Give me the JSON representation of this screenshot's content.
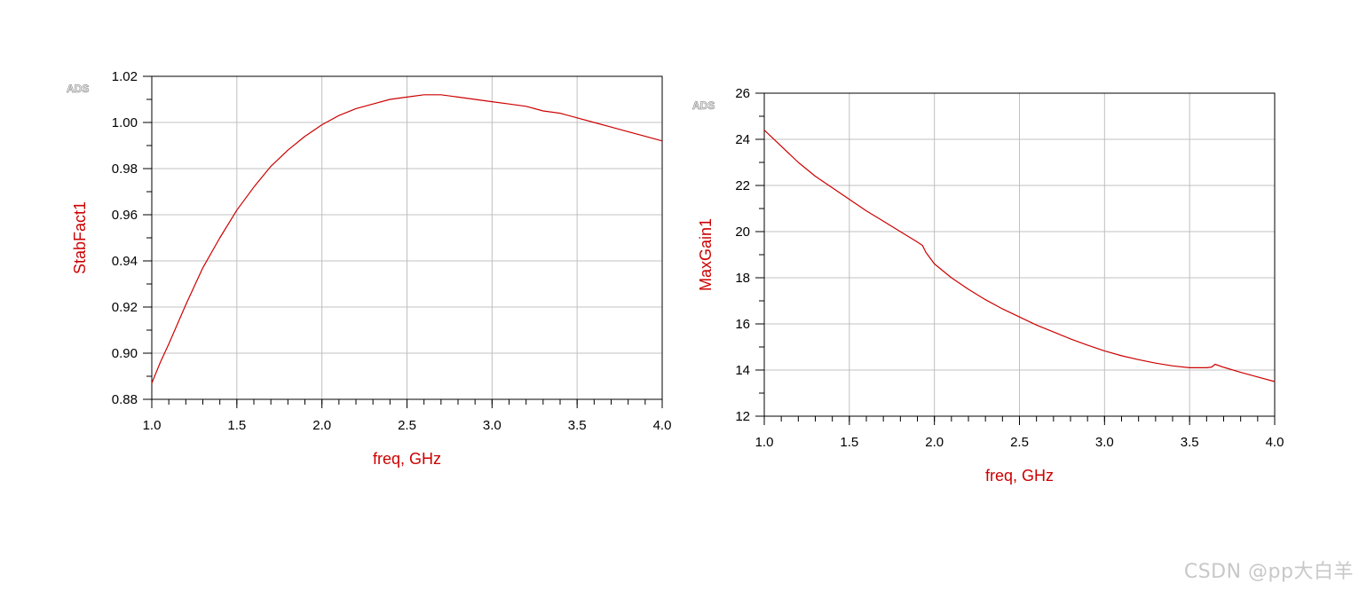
{
  "chart_data": [
    {
      "type": "line",
      "stamp": "ADS",
      "xlabel": "freq, GHz",
      "ylabel": "StabFact1",
      "xlim": [
        1.0,
        4.0
      ],
      "ylim": [
        0.88,
        1.02
      ],
      "x_major_ticks": [
        "1.0",
        "1.5",
        "2.0",
        "2.5",
        "3.0",
        "3.5",
        "4.0"
      ],
      "y_major_ticks": [
        "0.88",
        "0.90",
        "0.92",
        "0.94",
        "0.96",
        "0.98",
        "1.00",
        "1.02"
      ],
      "grid": true,
      "color": "#cc0000",
      "series": [
        {
          "x": [
            1.0,
            1.05,
            1.1,
            1.2,
            1.3,
            1.4,
            1.5,
            1.6,
            1.7,
            1.8,
            1.9,
            2.0,
            2.1,
            2.2,
            2.3,
            2.4,
            2.5,
            2.6,
            2.7,
            2.8,
            2.9,
            3.0,
            3.1,
            3.2,
            3.3,
            3.4,
            3.5,
            3.6,
            3.7,
            3.8,
            3.9,
            4.0
          ],
          "y": [
            0.887,
            0.896,
            0.904,
            0.921,
            0.937,
            0.95,
            0.962,
            0.972,
            0.981,
            0.988,
            0.994,
            0.999,
            1.003,
            1.006,
            1.008,
            1.01,
            1.011,
            1.012,
            1.012,
            1.011,
            1.01,
            1.009,
            1.008,
            1.007,
            1.005,
            1.004,
            1.002,
            1.0,
            0.998,
            0.996,
            0.994,
            0.992
          ]
        }
      ]
    },
    {
      "type": "line",
      "stamp": "ADS",
      "xlabel": "freq, GHz",
      "ylabel": "MaxGain1",
      "xlim": [
        1.0,
        4.0
      ],
      "ylim": [
        12,
        26
      ],
      "x_major_ticks": [
        "1.0",
        "1.5",
        "2.0",
        "2.5",
        "3.0",
        "3.5",
        "4.0"
      ],
      "y_major_ticks": [
        "12",
        "14",
        "16",
        "18",
        "20",
        "22",
        "24",
        "26"
      ],
      "grid": true,
      "color": "#cc0000",
      "series": [
        {
          "x": [
            1.0,
            1.1,
            1.2,
            1.3,
            1.4,
            1.5,
            1.6,
            1.7,
            1.8,
            1.9,
            1.93,
            1.95,
            2.0,
            2.1,
            2.2,
            2.3,
            2.4,
            2.5,
            2.6,
            2.7,
            2.8,
            2.9,
            3.0,
            3.1,
            3.2,
            3.3,
            3.4,
            3.5,
            3.6,
            3.63,
            3.65,
            3.7,
            3.8,
            3.9,
            4.0
          ],
          "y": [
            24.4,
            23.7,
            23.0,
            22.4,
            21.9,
            21.4,
            20.9,
            20.45,
            20.0,
            19.55,
            19.4,
            19.1,
            18.6,
            18.0,
            17.5,
            17.05,
            16.65,
            16.3,
            15.95,
            15.65,
            15.35,
            15.08,
            14.83,
            14.62,
            14.45,
            14.3,
            14.18,
            14.1,
            14.1,
            14.13,
            14.25,
            14.12,
            13.9,
            13.7,
            13.5
          ]
        }
      ]
    }
  ],
  "watermark": "CSDN @pp大白羊"
}
